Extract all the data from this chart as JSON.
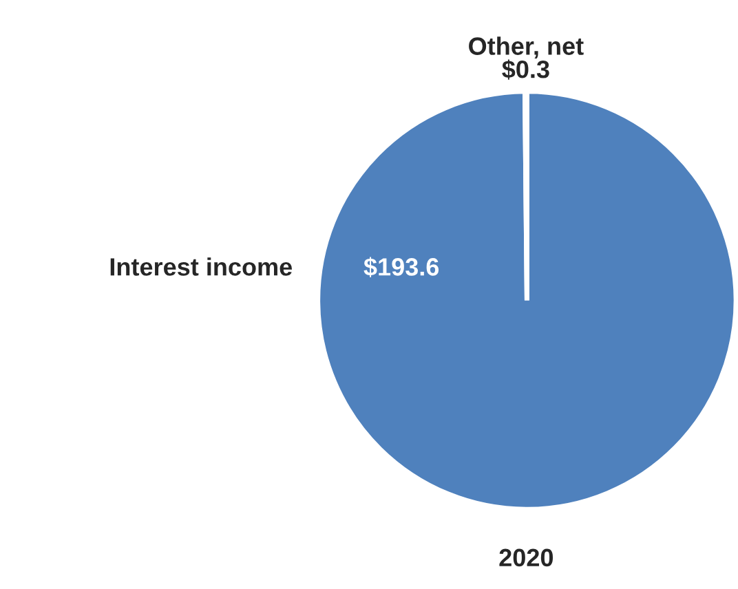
{
  "chart_data": {
    "type": "pie",
    "title": "2020",
    "categories": [
      "Interest income",
      "Other, net"
    ],
    "values": [
      193.6,
      0.3
    ],
    "colors": [
      "#4f81bd",
      "#4f81bd"
    ],
    "value_labels": [
      "$193.6",
      "$0.3"
    ],
    "legend": false
  }
}
